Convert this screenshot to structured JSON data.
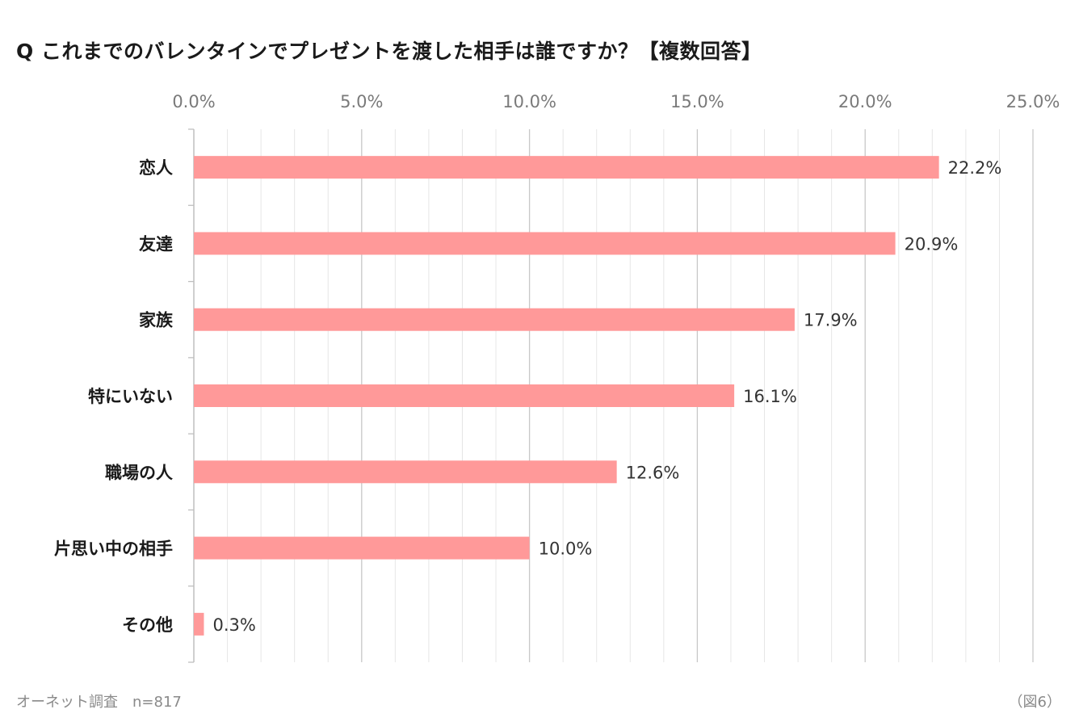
{
  "chart_data": {
    "type": "bar",
    "orientation": "horizontal",
    "title": "Q これまでのバレンタインでプレゼントを渡した相手は誰ですか？【複数回答】",
    "categories": [
      "恋人",
      "友達",
      "家族",
      "特にいない",
      "職場の人",
      "片思い中の相手",
      "その他"
    ],
    "values": [
      22.2,
      20.9,
      17.9,
      16.1,
      12.6,
      10.0,
      0.3
    ],
    "value_labels": [
      "22.2%",
      "20.9%",
      "17.9%",
      "16.1%",
      "12.6%",
      "10.0%",
      "0.3%"
    ],
    "xlim": [
      0,
      25
    ],
    "x_ticks": [
      0,
      5,
      10,
      15,
      20,
      25
    ],
    "x_tick_labels": [
      "0.0%",
      "5.0%",
      "10.0%",
      "15.0%",
      "20.0%",
      "25.0%"
    ],
    "x_axis_position": "top",
    "minor_gridlines_step": 1,
    "bar_color": "#ff9999",
    "grid": true,
    "xlabel": "",
    "ylabel": ""
  },
  "footer": {
    "source": "オーネット調査　n=817",
    "figure_label": "（図6）"
  }
}
